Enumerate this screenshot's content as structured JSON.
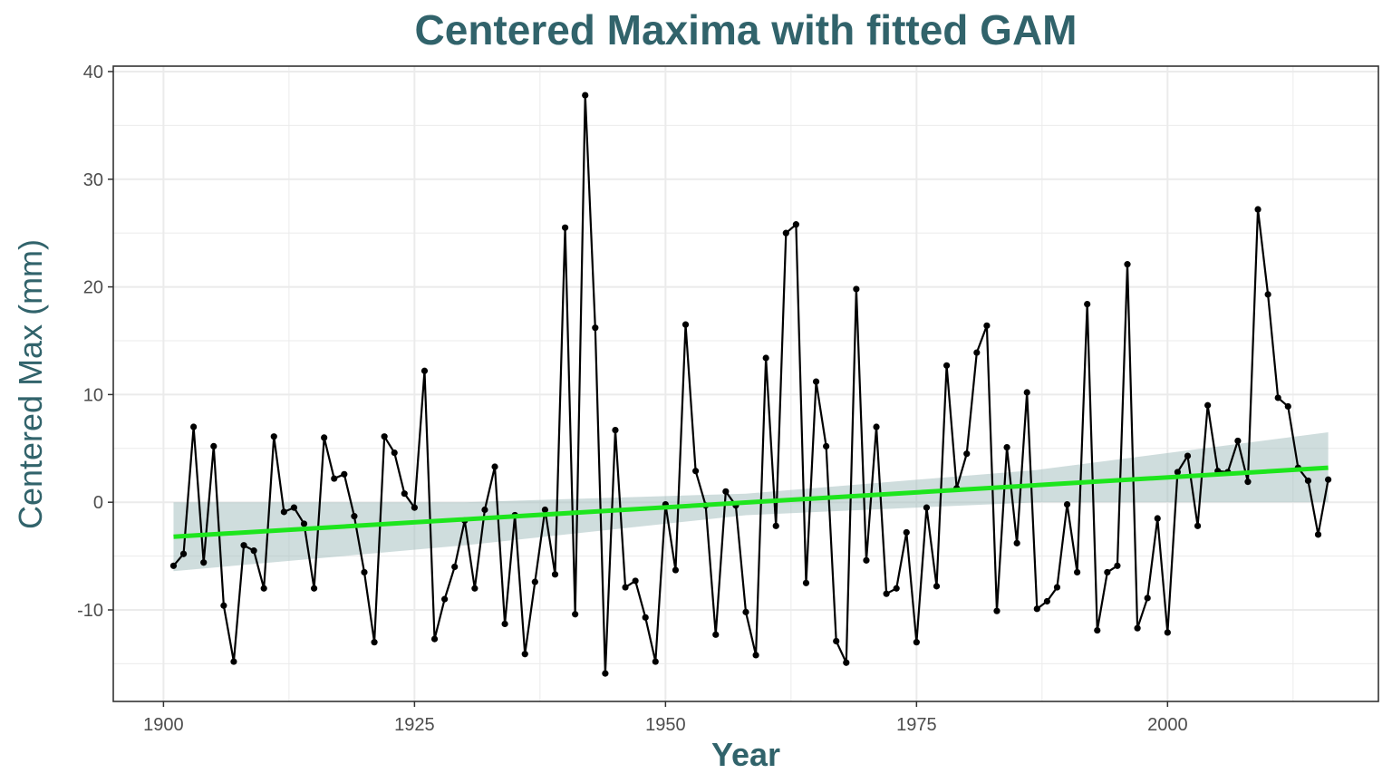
{
  "chart_data": {
    "type": "line",
    "title": "Centered Maxima with fitted GAM",
    "xlabel": "Year",
    "ylabel": "Centered Max (mm)",
    "xlim": [
      1895,
      2021
    ],
    "ylim": [
      -18.5,
      40.5
    ],
    "x_ticks": [
      1900,
      1925,
      1950,
      1975,
      2000
    ],
    "x_tick_labels": [
      "1900",
      "1925",
      "1950",
      "1975",
      "2000"
    ],
    "y_ticks": [
      -10,
      0,
      10,
      20,
      30,
      40
    ],
    "y_tick_labels": [
      "-10",
      "0",
      "10",
      "20",
      "30",
      "40"
    ],
    "grid": true,
    "legend": "none",
    "colors": {
      "observed": "#000000",
      "fit": "#1de51d",
      "band": "#9fbcbc",
      "title": "#31636b",
      "grid": "#ebebeb"
    },
    "series": [
      {
        "x": [
          1901,
          1902,
          1903,
          1904,
          1905,
          1906,
          1907,
          1908,
          1909,
          1910,
          1911,
          1912,
          1913,
          1914,
          1915,
          1916,
          1917,
          1918,
          1919,
          1920,
          1921,
          1922,
          1923,
          1924,
          1925,
          1926,
          1927,
          1928,
          1929,
          1930,
          1931,
          1932,
          1933,
          1934,
          1935,
          1936,
          1937,
          1938,
          1939,
          1940,
          1941,
          1942,
          1943,
          1944,
          1945,
          1946,
          1947,
          1948,
          1949,
          1950,
          1951,
          1952,
          1953,
          1954,
          1955,
          1956,
          1957,
          1958,
          1959,
          1960,
          1961,
          1962,
          1963,
          1964,
          1965,
          1966,
          1967,
          1968,
          1969,
          1970,
          1971,
          1972,
          1973,
          1974,
          1975,
          1976,
          1977,
          1978,
          1979,
          1980,
          1981,
          1982,
          1983,
          1984,
          1985,
          1986,
          1987,
          1988,
          1989,
          1990,
          1991,
          1992,
          1993,
          1994,
          1995,
          1996,
          1997,
          1998,
          1999,
          2000,
          2001,
          2002,
          2003,
          2004,
          2005,
          2006,
          2007,
          2008,
          2009,
          2010,
          2011,
          2012,
          2013,
          2014,
          2015,
          2016
        ],
        "values": [
          -5.9,
          -4.8,
          7,
          -5.6,
          5.2,
          -9.6,
          -14.8,
          -4,
          -4.5,
          -8,
          6.1,
          -0.9,
          -0.5,
          -2,
          -8,
          6,
          2.2,
          2.6,
          -1.3,
          -6.5,
          -13,
          6.1,
          4.6,
          0.8,
          -0.5,
          12.2,
          -12.7,
          -9,
          -6,
          -1.7,
          -8,
          -0.7,
          3.3,
          -11.3,
          -1.2,
          -14.1,
          -7.4,
          -0.7,
          -6.7,
          25.5,
          -10.4,
          37.8,
          16.2,
          -15.9,
          6.7,
          -7.9,
          -7.3,
          -10.7,
          -14.8,
          -0.2,
          -6.3,
          16.5,
          2.9,
          -0.3,
          -12.3,
          1,
          -0.3,
          -10.2,
          -14.2,
          13.4,
          -2.2,
          25,
          25.8,
          -7.5,
          11.2,
          5.2,
          -12.9,
          -14.9,
          19.8,
          -5.4,
          7,
          -8.5,
          -8,
          -2.8,
          -13,
          -0.5,
          -7.8,
          12.7,
          1.3,
          4.5,
          13.9,
          16.4,
          -10.1,
          5.1,
          -3.8,
          10.2,
          -9.9,
          -9.2,
          -7.9,
          -0.2,
          -6.5,
          18.4,
          -11.9,
          -6.5,
          -5.9,
          22.1,
          -11.7,
          -8.9,
          -1.5,
          -12.1,
          2.8,
          4.3,
          -2.2,
          9,
          2.9,
          2.8,
          5.7,
          1.9,
          27.2,
          19.3,
          9.7,
          8.9,
          3.2,
          2,
          -3,
          2.1
        ]
      },
      {
        "type": "line",
        "x": [
          1901,
          2016
        ],
        "values": [
          -3.2,
          3.2
        ]
      }
    ],
    "bands": [
      {
        "x": [
          1901,
          1930,
          1958,
          1987,
          2016
        ],
        "upper": [
          0,
          0,
          0.8,
          3,
          6.5
        ],
        "lower": [
          -6.4,
          -4,
          -1.2,
          0,
          0
        ]
      }
    ]
  }
}
